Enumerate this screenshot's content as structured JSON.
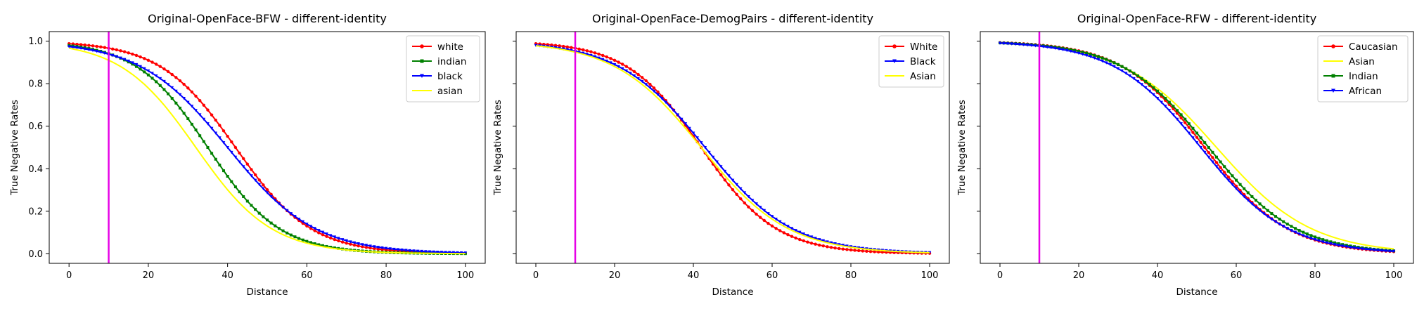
{
  "chart_data": [
    {
      "type": "line",
      "title": "Original-OpenFace-BFW - different-identity",
      "xlabel": "Distance",
      "ylabel": "True Negative Rates",
      "xlim": [
        0,
        100
      ],
      "ylim": [
        0,
        1.0
      ],
      "xticks": [
        "0",
        "20",
        "40",
        "60",
        "80",
        "100"
      ],
      "yticks": [
        "0.0",
        "0.2",
        "0.4",
        "0.6",
        "0.8",
        "1.0"
      ],
      "threshold_x": 10,
      "threshold_color": "#e600e6",
      "legend_position": "top-right",
      "series": [
        {
          "name": "white",
          "color": "#ff0000",
          "marker": "circle",
          "center": 42,
          "scale": 9.5
        },
        {
          "name": "indian",
          "color": "#008000",
          "marker": "square",
          "center": 35,
          "scale": 9.0
        },
        {
          "name": "black",
          "color": "#0000ff",
          "marker": "triangle",
          "center": 40,
          "scale": 11.0
        },
        {
          "name": "asian",
          "color": "#ffff00",
          "marker": "none",
          "center": 32,
          "scale": 9.5
        }
      ]
    },
    {
      "type": "line",
      "title": "Original-OpenFace-DemogPairs - different-identity",
      "xlabel": "Distance",
      "ylabel": "True Negative Rates",
      "xlim": [
        0,
        100
      ],
      "ylim": [
        0,
        1.0
      ],
      "xticks": [
        "0",
        "20",
        "40",
        "60",
        "80",
        "100"
      ],
      "yticks": [
        "",
        "",
        "",
        "",
        "",
        ""
      ],
      "threshold_x": 10,
      "threshold_color": "#e600e6",
      "legend_position": "top-right",
      "series": [
        {
          "name": "White",
          "color": "#ff0000",
          "marker": "circle",
          "center": 42,
          "scale": 9.5
        },
        {
          "name": "Black",
          "color": "#0000ff",
          "marker": "triangle",
          "center": 43,
          "scale": 11.0
        },
        {
          "name": "Asian",
          "color": "#ffff00",
          "marker": "none",
          "center": 42,
          "scale": 11.0
        }
      ]
    },
    {
      "type": "line",
      "title": "Original-OpenFace-RFW - different-identity",
      "xlabel": "Distance",
      "ylabel": "True Negative Rates",
      "xlim": [
        0,
        100
      ],
      "ylim": [
        0,
        1.0
      ],
      "xticks": [
        "0",
        "20",
        "40",
        "60",
        "80",
        "100"
      ],
      "yticks": [
        "",
        "",
        "",
        "",
        "",
        ""
      ],
      "threshold_x": 10,
      "threshold_color": "#e600e6",
      "legend_position": "top-right",
      "series": [
        {
          "name": "Caucasian",
          "color": "#ff0000",
          "marker": "circle",
          "center": 52,
          "scale": 10.5
        },
        {
          "name": "Asian",
          "color": "#ffff00",
          "marker": "none",
          "center": 55,
          "scale": 12.0
        },
        {
          "name": "Indian",
          "color": "#008000",
          "marker": "square",
          "center": 53,
          "scale": 11.0
        },
        {
          "name": "African",
          "color": "#0000ff",
          "marker": "triangle",
          "center": 51,
          "scale": 11.0
        }
      ]
    }
  ]
}
